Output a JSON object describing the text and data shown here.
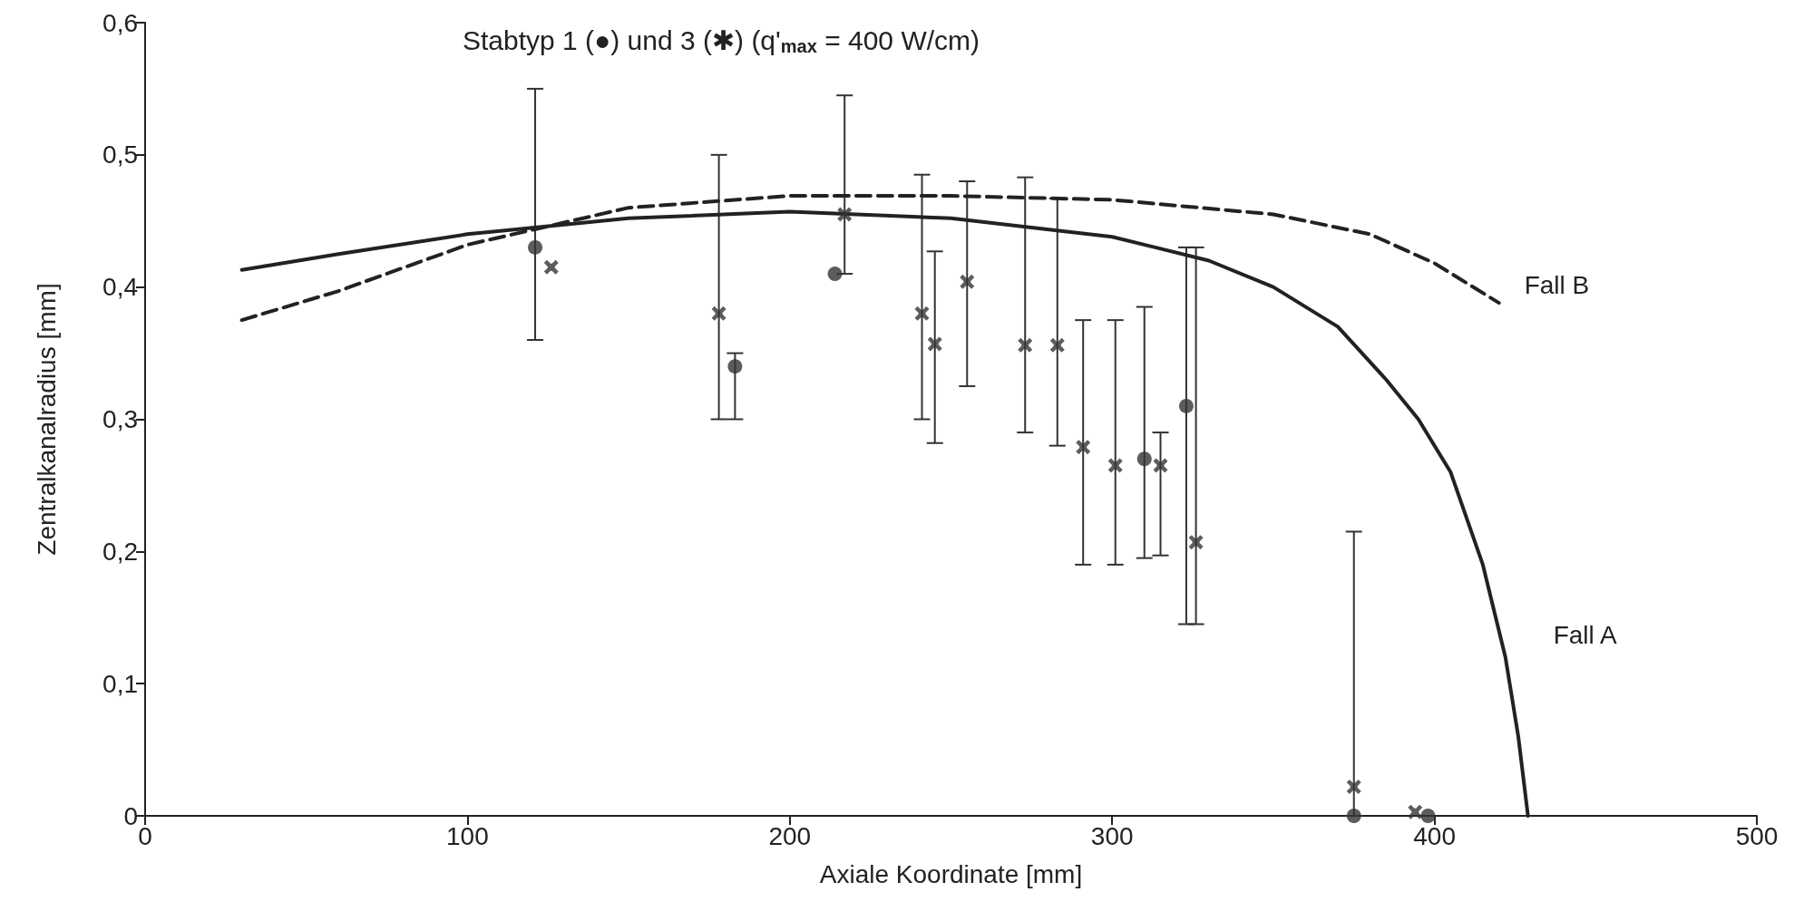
{
  "chart_data": {
    "type": "scatter",
    "title": "Stabtyp 1 (●) und 3 (✱) (q'$_{max}$ = 400 W/cm)",
    "xlabel": "Axiale Koordinate [mm]",
    "ylabel": "Zentralkanalradius [mm]",
    "xlim": [
      0,
      500
    ],
    "xticks": [
      0,
      100,
      200,
      300,
      400,
      500
    ],
    "ylim": [
      0,
      0.6
    ],
    "yticks": [
      {
        "value": 0,
        "label": "0"
      },
      {
        "value": 0.1,
        "label": "0,1"
      },
      {
        "value": 0.2,
        "label": "0,2"
      },
      {
        "value": 0.3,
        "label": "0,3"
      },
      {
        "value": 0.4,
        "label": "0,4"
      },
      {
        "value": 0.5,
        "label": "0,5"
      },
      {
        "value": 0.6,
        "label": "0,6"
      }
    ],
    "grid": false,
    "legend": false,
    "series": [
      {
        "marker": "circle",
        "color": "#333333",
        "x": [
          121,
          183,
          214,
          310,
          323,
          375,
          398
        ],
        "values": [
          0.43,
          0.34,
          0.41,
          0.27,
          0.31,
          0,
          0
        ],
        "errors": [
          [
            0.36,
            0.55
          ],
          [
            0.3,
            0.35
          ],
          null,
          [
            0.195,
            0.385
          ],
          [
            0.145,
            0.43
          ],
          null,
          null
        ]
      },
      {
        "marker": "cross",
        "color": "#333333",
        "x": [
          126,
          178,
          217,
          241,
          245,
          255,
          273,
          283,
          291,
          301,
          315,
          326,
          375,
          394
        ],
        "values": [
          0.415,
          0.38,
          0.455,
          0.38,
          0.357,
          0.404,
          0.356,
          0.356,
          0.279,
          0.265,
          0.265,
          0.207,
          0.022,
          0.003
        ],
        "errors": [
          null,
          [
            0.3,
            0.5
          ],
          [
            0.41,
            0.545
          ],
          [
            0.3,
            0.485
          ],
          [
            0.282,
            0.427
          ],
          [
            0.325,
            0.48
          ],
          [
            0.29,
            0.483
          ],
          [
            0.28,
            0.467
          ],
          [
            0.19,
            0.375
          ],
          [
            0.19,
            0.375
          ],
          [
            0.197,
            0.29
          ],
          [
            0.145,
            0.43
          ],
          [
            0,
            0.215
          ],
          null
        ]
      },
      {
        "type": "line",
        "name": "Fall A",
        "marker": "none",
        "line_style": "solid",
        "color": "#222222",
        "x": [
          30,
          60,
          100,
          150,
          200,
          250,
          300,
          330,
          350,
          370,
          385,
          395,
          405,
          415,
          422,
          426,
          429
        ],
        "values": [
          0.413,
          0.425,
          0.44,
          0.452,
          0.457,
          0.452,
          0.438,
          0.42,
          0.4,
          0.37,
          0.33,
          0.3,
          0.26,
          0.19,
          0.12,
          0.06,
          0
        ]
      },
      {
        "type": "line",
        "name": "Fall B",
        "marker": "none",
        "line_style": "dashed",
        "color": "#222222",
        "x": [
          30,
          60,
          100,
          150,
          200,
          250,
          300,
          350,
          380,
          400,
          420
        ],
        "values": [
          0.375,
          0.397,
          0.432,
          0.46,
          0.469,
          0.469,
          0.466,
          0.455,
          0.44,
          0.418,
          0.388
        ]
      }
    ]
  }
}
